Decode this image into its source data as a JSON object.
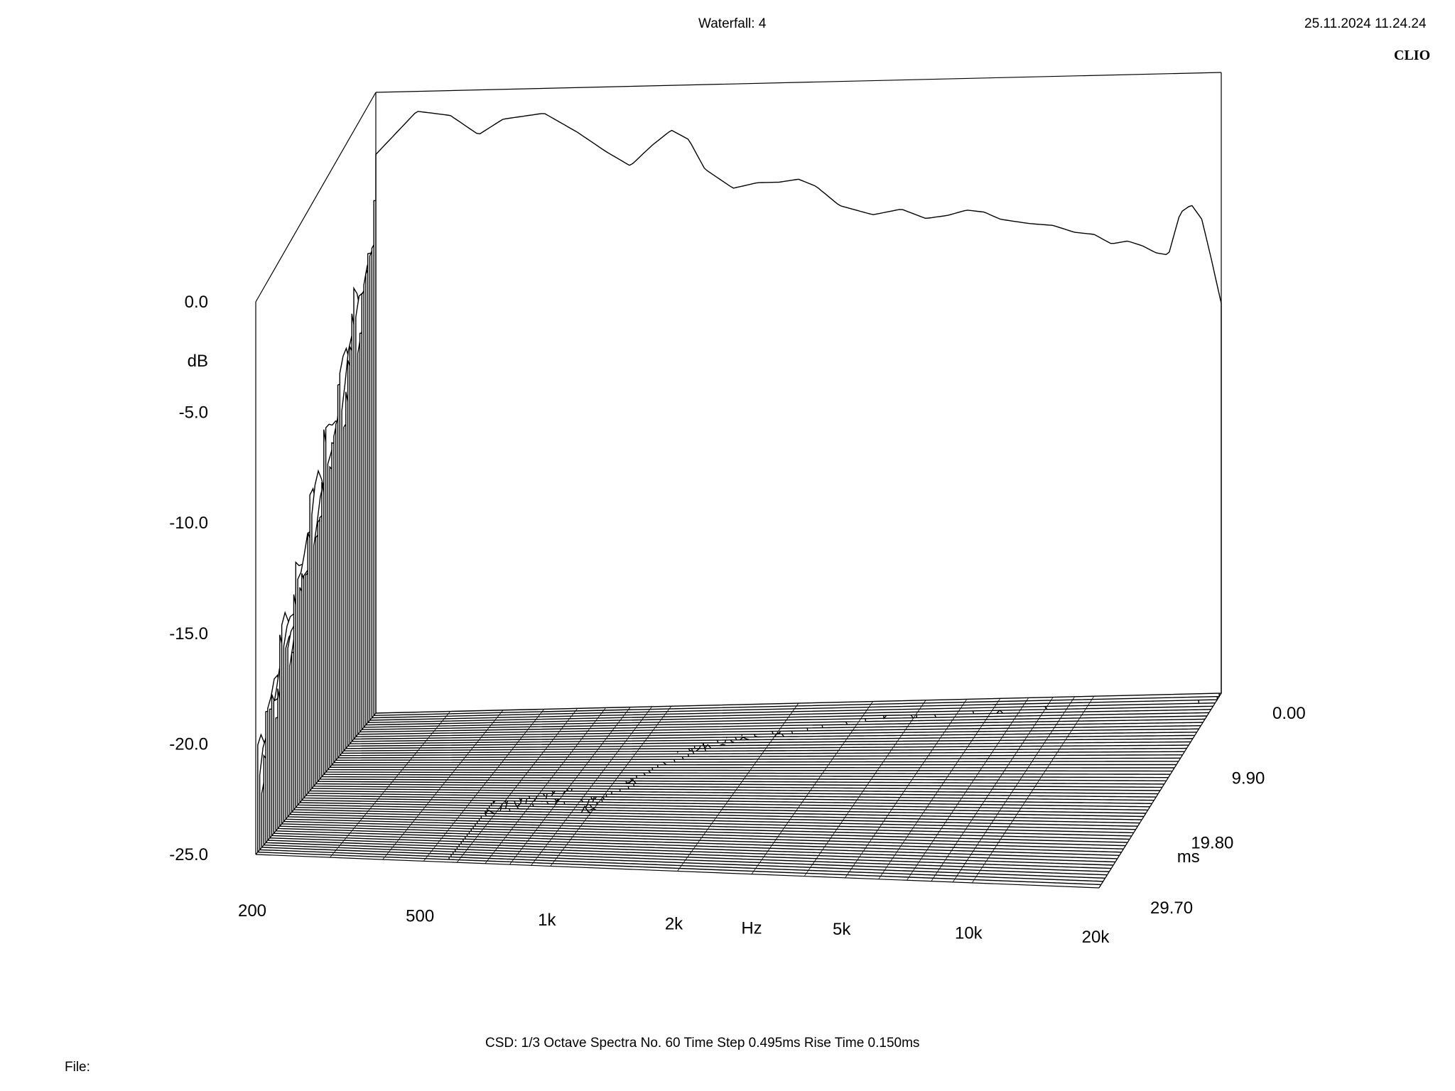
{
  "header": {
    "title": "Waterfall: 4",
    "datetime": "25.11.2024 11.24.24",
    "brand": "CLIO"
  },
  "footer": {
    "settings": "CSD:   1/3 Octave   Spectra No. 60   Time Step 0.495ms   Rise Time 0.150ms",
    "file_label": "File:"
  },
  "chart_data": {
    "type": "area",
    "subtype": "waterfall-3d",
    "title": "Waterfall: 4",
    "xlabel": "Hz",
    "ylabel": "dB",
    "zlabel": "ms",
    "x_scale": "log",
    "xlim": [
      200,
      20000
    ],
    "ylim": [
      -25,
      0
    ],
    "zlim": [
      0,
      29.7
    ],
    "x_ticks": [
      "200",
      "500",
      "1k",
      "2k",
      "5k",
      "10k",
      "20k"
    ],
    "y_ticks": [
      "0.0",
      "-5.0",
      "-10.0",
      "-15.0",
      "-20.0",
      "-25.0"
    ],
    "z_ticks": [
      "0.00",
      "9.90",
      "19.80",
      "29.70"
    ],
    "spectra_count": 60,
    "time_step_ms": 0.495,
    "rise_time_ms": 0.15,
    "smoothing": "1/3 Octave",
    "first_slice": {
      "time_ms": 0,
      "x": [
        200,
        250,
        300,
        350,
        400,
        500,
        600,
        700,
        800,
        900,
        1000,
        1100,
        1200,
        1400,
        1600,
        1800,
        2000,
        2200,
        2500,
        3000,
        3500,
        4000,
        4500,
        5000,
        5500,
        6000,
        7000,
        8000,
        9000,
        10000,
        11000,
        12000,
        13000,
        14000,
        15000,
        16000,
        17000,
        18000,
        19000,
        20000
      ],
      "y": [
        -2.5,
        -0.8,
        -1.0,
        -1.8,
        -1.2,
        -1.0,
        -1.8,
        -2.6,
        -3.2,
        -2.4,
        -1.8,
        -2.2,
        -3.4,
        -4.2,
        -4.0,
        -4.0,
        -3.9,
        -4.2,
        -5.0,
        -5.4,
        -5.2,
        -5.6,
        -5.5,
        -5.3,
        -5.4,
        -5.7,
        -5.9,
        -6.0,
        -6.3,
        -6.4,
        -6.8,
        -6.7,
        -6.9,
        -7.2,
        -7.3,
        -5.6,
        -5.3,
        -5.9,
        -7.6,
        -9.3
      ]
    }
  }
}
